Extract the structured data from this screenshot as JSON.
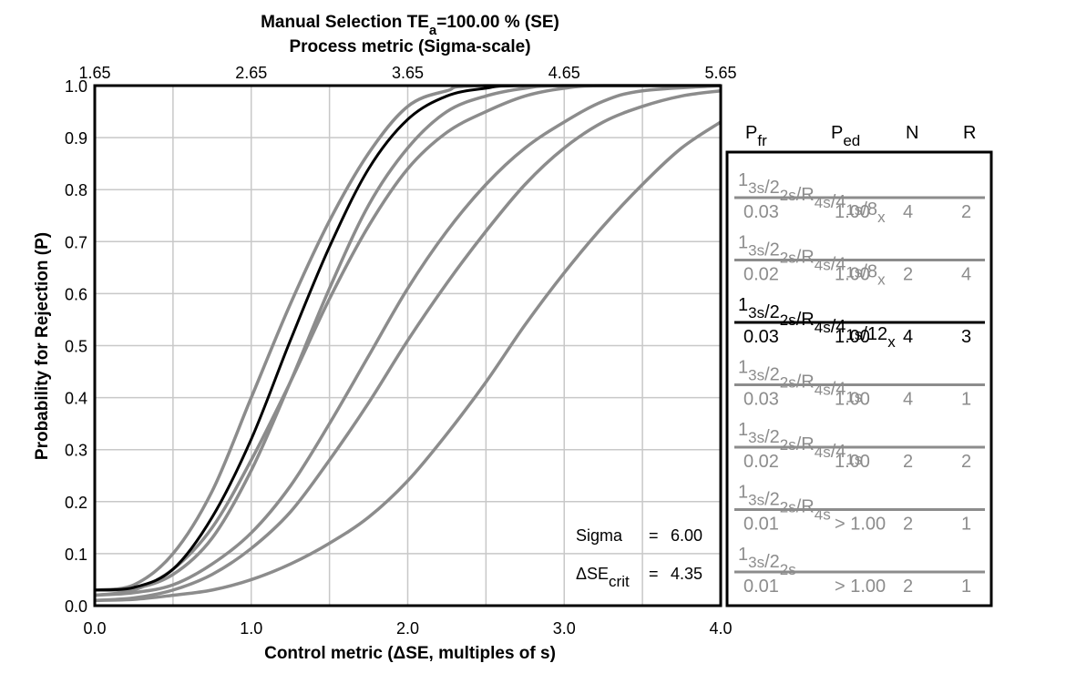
{
  "chart_data": {
    "type": "line",
    "title": {
      "main_prefix": "Manual Selection  TE",
      "main_sub": "a",
      "main_suffix": "=100.00 % (SE)",
      "second": "Process metric (Sigma-scale)"
    },
    "xlabel": "Control metric (ΔSE, multiples of s)",
    "ylabel": "Probability for Rejection (P)",
    "xlim": [
      0,
      4
    ],
    "ylim": [
      0,
      1
    ],
    "x_ticks": [
      {
        "value": 0,
        "label": "0.0"
      },
      {
        "value": 1,
        "label": "1.0"
      },
      {
        "value": 2,
        "label": "2.0"
      },
      {
        "value": 3,
        "label": "3.0"
      },
      {
        "value": 4,
        "label": "4.0"
      }
    ],
    "y_ticks": [
      {
        "value": 0.0,
        "label": "0.0"
      },
      {
        "value": 0.1,
        "label": "0.1"
      },
      {
        "value": 0.2,
        "label": "0.2"
      },
      {
        "value": 0.3,
        "label": "0.3"
      },
      {
        "value": 0.4,
        "label": "0.4"
      },
      {
        "value": 0.5,
        "label": "0.5"
      },
      {
        "value": 0.6,
        "label": "0.6"
      },
      {
        "value": 0.7,
        "label": "0.7"
      },
      {
        "value": 0.8,
        "label": "0.8"
      },
      {
        "value": 0.9,
        "label": "0.9"
      },
      {
        "value": 1.0,
        "label": "1.0"
      }
    ],
    "top_ticks": [
      {
        "value": 0,
        "label": "1.65"
      },
      {
        "value": 1,
        "label": "2.65"
      },
      {
        "value": 2,
        "label": "3.65"
      },
      {
        "value": 3,
        "label": "4.65"
      },
      {
        "value": 4,
        "label": "5.65"
      }
    ],
    "grid": true,
    "annotations": {
      "sigma_label": "Sigma",
      "sigma_eq": "=",
      "sigma_value": "6.00",
      "dse_prefix": "ΔSE",
      "dse_sub": "crit",
      "dse_eq": "=",
      "dse_value": "4.35"
    },
    "legend_headers": {
      "pfr": "P",
      "pfr_sub": "fr",
      "ped": "P",
      "ped_sub": "ed",
      "n": "N",
      "r": "R"
    },
    "series": [
      {
        "name": "1_3s/2_2s/R_4s/4_1s/8_x",
        "rule": [
          [
            "1",
            "3s"
          ],
          [
            "/2",
            "2s"
          ],
          [
            "/R",
            "4s"
          ],
          [
            "/4",
            "1s"
          ],
          [
            "/8",
            "x"
          ]
        ],
        "pfr": "0.03",
        "ped": "1.00",
        "n": "4",
        "r": "2",
        "color": "#8c8c8c",
        "width": 3.5,
        "points": [
          [
            0,
            0.03
          ],
          [
            0.25,
            0.04
          ],
          [
            0.5,
            0.1
          ],
          [
            0.75,
            0.22
          ],
          [
            1.0,
            0.4
          ],
          [
            1.25,
            0.58
          ],
          [
            1.5,
            0.74
          ],
          [
            1.75,
            0.87
          ],
          [
            2.0,
            0.96
          ],
          [
            2.25,
            0.99
          ],
          [
            2.5,
            1.0
          ],
          [
            4.0,
            1.0
          ]
        ]
      },
      {
        "name": "1_3s/2_2s/R_4s/4_1s/8_x",
        "rule": [
          [
            "1",
            "3s"
          ],
          [
            "/2",
            "2s"
          ],
          [
            "/R",
            "4s"
          ],
          [
            "/4",
            "1s"
          ],
          [
            "/8",
            "x"
          ]
        ],
        "pfr": "0.02",
        "ped": "1.00",
        "n": "2",
        "r": "4",
        "color": "#8c8c8c",
        "width": 3.5,
        "points": [
          [
            0,
            0.02
          ],
          [
            0.25,
            0.03
          ],
          [
            0.5,
            0.07
          ],
          [
            0.75,
            0.15
          ],
          [
            1.0,
            0.28
          ],
          [
            1.25,
            0.43
          ],
          [
            1.5,
            0.59
          ],
          [
            1.75,
            0.73
          ],
          [
            2.0,
            0.84
          ],
          [
            2.25,
            0.91
          ],
          [
            2.5,
            0.95
          ],
          [
            2.75,
            0.98
          ],
          [
            3.0,
            0.995
          ],
          [
            3.25,
            1.0
          ],
          [
            4.0,
            1.0
          ]
        ]
      },
      {
        "name": "1_3s/2_2s/R_4s/4_1s/12_x",
        "rule": [
          [
            "1",
            "3s"
          ],
          [
            "/2",
            "2s"
          ],
          [
            "/R",
            "4s"
          ],
          [
            "/4",
            "1s"
          ],
          [
            "/12",
            "x"
          ]
        ],
        "pfr": "0.03",
        "ped": "1.00",
        "n": "4",
        "r": "3",
        "color": "#000000",
        "width": 3,
        "points": [
          [
            0,
            0.03
          ],
          [
            0.25,
            0.035
          ],
          [
            0.5,
            0.07
          ],
          [
            0.75,
            0.17
          ],
          [
            1.0,
            0.32
          ],
          [
            1.25,
            0.51
          ],
          [
            1.5,
            0.69
          ],
          [
            1.75,
            0.84
          ],
          [
            2.0,
            0.935
          ],
          [
            2.25,
            0.98
          ],
          [
            2.5,
            0.995
          ],
          [
            2.75,
            1.0
          ],
          [
            4.0,
            1.0
          ]
        ]
      },
      {
        "name": "1_3s/2_2s/R_4s/4_1s",
        "rule": [
          [
            "1",
            "3s"
          ],
          [
            "/2",
            "2s"
          ],
          [
            "/R",
            "4s"
          ],
          [
            "/4",
            "1s"
          ]
        ],
        "pfr": "0.03",
        "ped": "1.00",
        "n": "4",
        "r": "1",
        "color": "#8c8c8c",
        "width": 3.5,
        "points": [
          [
            0,
            0.03
          ],
          [
            0.25,
            0.033
          ],
          [
            0.5,
            0.06
          ],
          [
            0.75,
            0.13
          ],
          [
            1.0,
            0.26
          ],
          [
            1.25,
            0.43
          ],
          [
            1.5,
            0.61
          ],
          [
            1.75,
            0.77
          ],
          [
            2.0,
            0.88
          ],
          [
            2.25,
            0.95
          ],
          [
            2.5,
            0.98
          ],
          [
            2.75,
            0.995
          ],
          [
            3.0,
            1.0
          ],
          [
            4.0,
            1.0
          ]
        ]
      },
      {
        "name": "1_3s/2_2s/R_4s/4_1s",
        "rule": [
          [
            "1",
            "3s"
          ],
          [
            "/2",
            "2s"
          ],
          [
            "/R",
            "4s"
          ],
          [
            "/4",
            "1s"
          ]
        ],
        "pfr": "0.02",
        "ped": "1.00",
        "n": "2",
        "r": "2",
        "color": "#8c8c8c",
        "width": 3.5,
        "points": [
          [
            0,
            0.02
          ],
          [
            0.25,
            0.025
          ],
          [
            0.5,
            0.04
          ],
          [
            0.75,
            0.08
          ],
          [
            1.0,
            0.14
          ],
          [
            1.25,
            0.23
          ],
          [
            1.5,
            0.35
          ],
          [
            1.75,
            0.48
          ],
          [
            2.0,
            0.61
          ],
          [
            2.25,
            0.72
          ],
          [
            2.5,
            0.81
          ],
          [
            2.75,
            0.88
          ],
          [
            3.0,
            0.93
          ],
          [
            3.25,
            0.97
          ],
          [
            3.5,
            0.99
          ],
          [
            4.0,
            1.0
          ]
        ]
      },
      {
        "name": "1_3s/2_2s/R_4s",
        "rule": [
          [
            "1",
            "3s"
          ],
          [
            "/2",
            "2s"
          ],
          [
            "/R",
            "4s"
          ]
        ],
        "pfr": "0.01",
        "ped": "> 1.00",
        "n": "2",
        "r": "1",
        "color": "#8c8c8c",
        "width": 3.5,
        "points": [
          [
            0,
            0.01
          ],
          [
            0.25,
            0.015
          ],
          [
            0.5,
            0.03
          ],
          [
            0.75,
            0.06
          ],
          [
            1.0,
            0.11
          ],
          [
            1.25,
            0.18
          ],
          [
            1.5,
            0.28
          ],
          [
            1.75,
            0.39
          ],
          [
            2.0,
            0.51
          ],
          [
            2.25,
            0.62
          ],
          [
            2.5,
            0.72
          ],
          [
            2.75,
            0.81
          ],
          [
            3.0,
            0.88
          ],
          [
            3.25,
            0.93
          ],
          [
            3.5,
            0.96
          ],
          [
            3.75,
            0.98
          ],
          [
            4.0,
            0.99
          ]
        ]
      },
      {
        "name": "1_3s/2_2s",
        "rule": [
          [
            "1",
            "3s"
          ],
          [
            "/2",
            "2s"
          ]
        ],
        "pfr": "0.01",
        "ped": "> 1.00",
        "n": "2",
        "r": "1",
        "color": "#8c8c8c",
        "width": 3.5,
        "points": [
          [
            0,
            0.01
          ],
          [
            0.25,
            0.012
          ],
          [
            0.5,
            0.02
          ],
          [
            0.75,
            0.03
          ],
          [
            1.0,
            0.05
          ],
          [
            1.25,
            0.08
          ],
          [
            1.5,
            0.12
          ],
          [
            1.75,
            0.17
          ],
          [
            2.0,
            0.24
          ],
          [
            2.25,
            0.33
          ],
          [
            2.5,
            0.43
          ],
          [
            2.75,
            0.54
          ],
          [
            3.0,
            0.64
          ],
          [
            3.25,
            0.73
          ],
          [
            3.5,
            0.81
          ],
          [
            3.75,
            0.88
          ],
          [
            4.0,
            0.93
          ]
        ]
      }
    ]
  }
}
